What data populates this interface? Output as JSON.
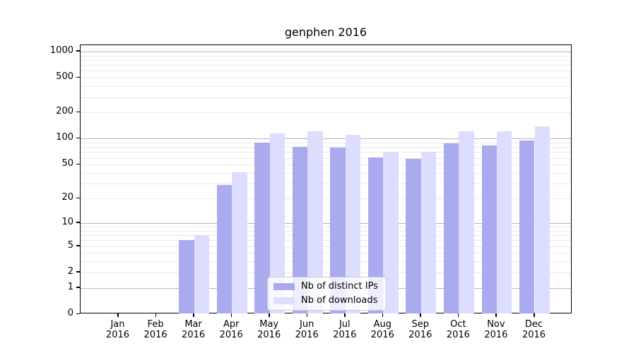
{
  "chart_data": {
    "type": "bar",
    "title": "genphen 2016",
    "categories": [
      "Jan\n2016",
      "Feb\n2016",
      "Mar\n2016",
      "Apr\n2016",
      "May\n2016",
      "Jun\n2016",
      "Jul\n2016",
      "Aug\n2016",
      "Sep\n2016",
      "Oct\n2016",
      "Nov\n2016",
      "Dec\n2016"
    ],
    "series": [
      {
        "name": "Nb of distinct IPs",
        "color": "#aaaaee",
        "values": [
          0,
          0,
          6,
          29,
          91,
          80,
          79,
          61,
          59,
          88,
          84,
          95
        ]
      },
      {
        "name": "Nb of downloads",
        "color": "#ddddff",
        "values": [
          0,
          0,
          7,
          41,
          116,
          121,
          110,
          70,
          70,
          121,
          122,
          138
        ]
      }
    ],
    "yticks": [
      0,
      1,
      2,
      5,
      10,
      20,
      50,
      100,
      200,
      500,
      1000
    ],
    "ytick_labels": [
      "0",
      "1",
      "2",
      "5",
      "10",
      "20",
      "50",
      "100",
      "200",
      "500",
      "1000"
    ],
    "scale": "log1p",
    "ylim": [
      0,
      1180
    ],
    "grid": "horizontal, major at powers of 10, minor at 2-9 per decade",
    "legend_position": "lower-center-inside",
    "xlabel": "",
    "ylabel": ""
  }
}
